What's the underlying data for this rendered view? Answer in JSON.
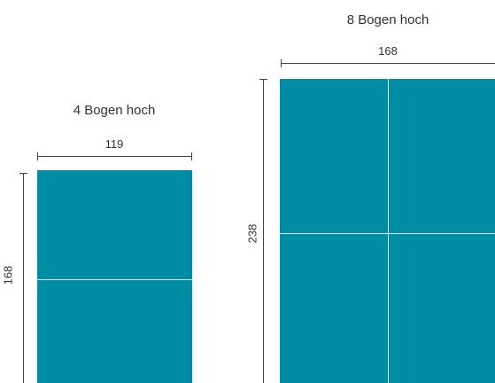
{
  "left": {
    "title": "4 Bogen hoch",
    "width_label": "119",
    "height_label": "168"
  },
  "right": {
    "title": "8 Bogen hoch",
    "width_label": "168",
    "height_label": "238"
  },
  "colors": {
    "sheet": "#008ca5",
    "divider": "#d8eef2",
    "dimension_line": "#444444",
    "text": "#333333"
  }
}
